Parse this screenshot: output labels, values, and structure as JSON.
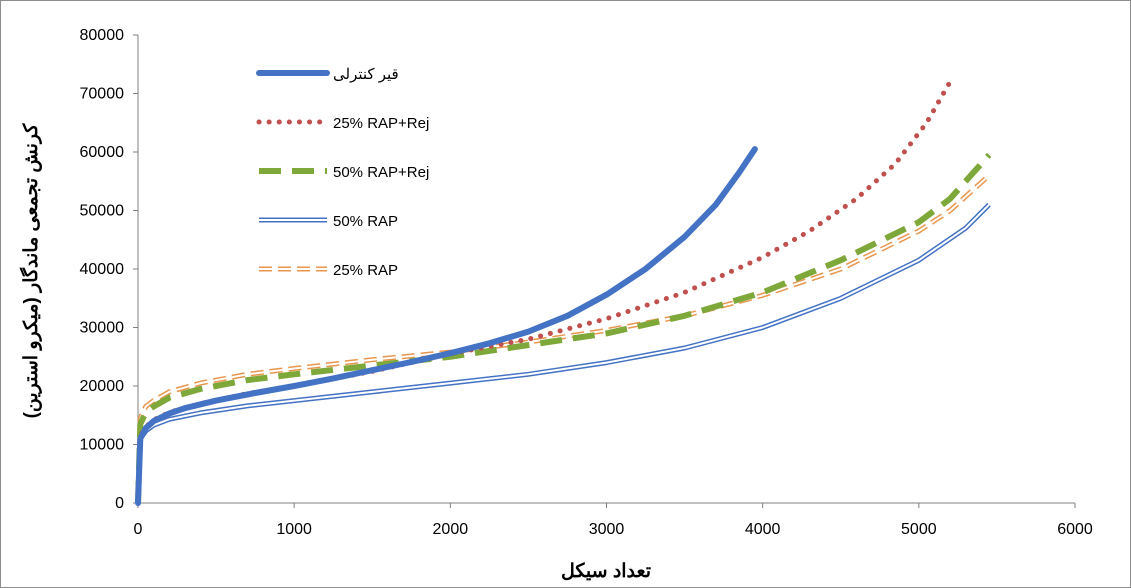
{
  "chart_data": {
    "type": "line",
    "title": "",
    "xlabel": "تعداد سیکل",
    "ylabel": "کرنش تجمعی ماندگار (میکرو استرین)",
    "xlim": [
      0,
      6000
    ],
    "ylim": [
      0,
      80000
    ],
    "x_ticks": [
      "0",
      "1000",
      "2000",
      "3000",
      "4000",
      "5000",
      "6000"
    ],
    "y_ticks": [
      "0",
      "10000",
      "20000",
      "30000",
      "40000",
      "50000",
      "60000",
      "70000",
      "80000"
    ],
    "grid": false,
    "legend_position": "top-left",
    "series": [
      {
        "name": "قیر کنترلی",
        "color": "#4472c4",
        "style": "solid-thick",
        "x": [
          0,
          15,
          50,
          100,
          200,
          300,
          500,
          750,
          1000,
          1250,
          1500,
          1750,
          2000,
          2250,
          2500,
          2750,
          3000,
          3250,
          3500,
          3700,
          3850,
          3950
        ],
        "y": [
          0,
          11000,
          12800,
          14000,
          15300,
          16200,
          17500,
          18800,
          20000,
          21300,
          22700,
          24100,
          25600,
          27300,
          29300,
          32000,
          35600,
          40000,
          45500,
          51000,
          56500,
          60500
        ]
      },
      {
        "name": "25% RAP+Rej",
        "color": "#c0504d",
        "style": "dotted",
        "x": [
          0,
          15,
          50,
          100,
          200,
          400,
          700,
          1000,
          1500,
          2000,
          2500,
          3000,
          3500,
          4000,
          4300,
          4600,
          4850,
          5050,
          5200
        ],
        "y": [
          0,
          11500,
          13000,
          14200,
          15500,
          17000,
          18700,
          20000,
          22500,
          25500,
          28000,
          31500,
          36000,
          42000,
          46500,
          52000,
          58000,
          65000,
          72000
        ]
      },
      {
        "name": "50% RAP+Rej",
        "color": "#7ea83a",
        "style": "long-dash",
        "x": [
          0,
          15,
          50,
          100,
          200,
          400,
          700,
          1000,
          1500,
          2000,
          2500,
          3000,
          3500,
          4000,
          4500,
          5000,
          5200,
          5450
        ],
        "y": [
          0,
          13500,
          15500,
          16500,
          18000,
          19500,
          21000,
          22000,
          23500,
          25000,
          27000,
          29000,
          32000,
          36000,
          41500,
          48000,
          52000,
          59500
        ]
      },
      {
        "name": "50% RAP",
        "color": "#4472c4",
        "style": "double",
        "x": [
          0,
          15,
          50,
          100,
          200,
          400,
          700,
          1000,
          1500,
          2000,
          2500,
          3000,
          3500,
          4000,
          4500,
          5000,
          5300,
          5450
        ],
        "y": [
          0,
          11000,
          12300,
          13300,
          14300,
          15400,
          16600,
          17500,
          19000,
          20500,
          22000,
          24000,
          26500,
          30000,
          35000,
          41500,
          47000,
          51000
        ]
      },
      {
        "name": "25% RAP",
        "color": "#e8964d",
        "style": "dash-double",
        "x": [
          0,
          15,
          50,
          100,
          200,
          400,
          700,
          1000,
          1500,
          2000,
          2500,
          3000,
          3500,
          4000,
          4500,
          5000,
          5200,
          5450
        ],
        "y": [
          0,
          14500,
          16500,
          17500,
          19000,
          20500,
          22000,
          23000,
          24500,
          25800,
          27500,
          29500,
          32000,
          35500,
          40000,
          46500,
          50000,
          56000
        ]
      }
    ]
  }
}
